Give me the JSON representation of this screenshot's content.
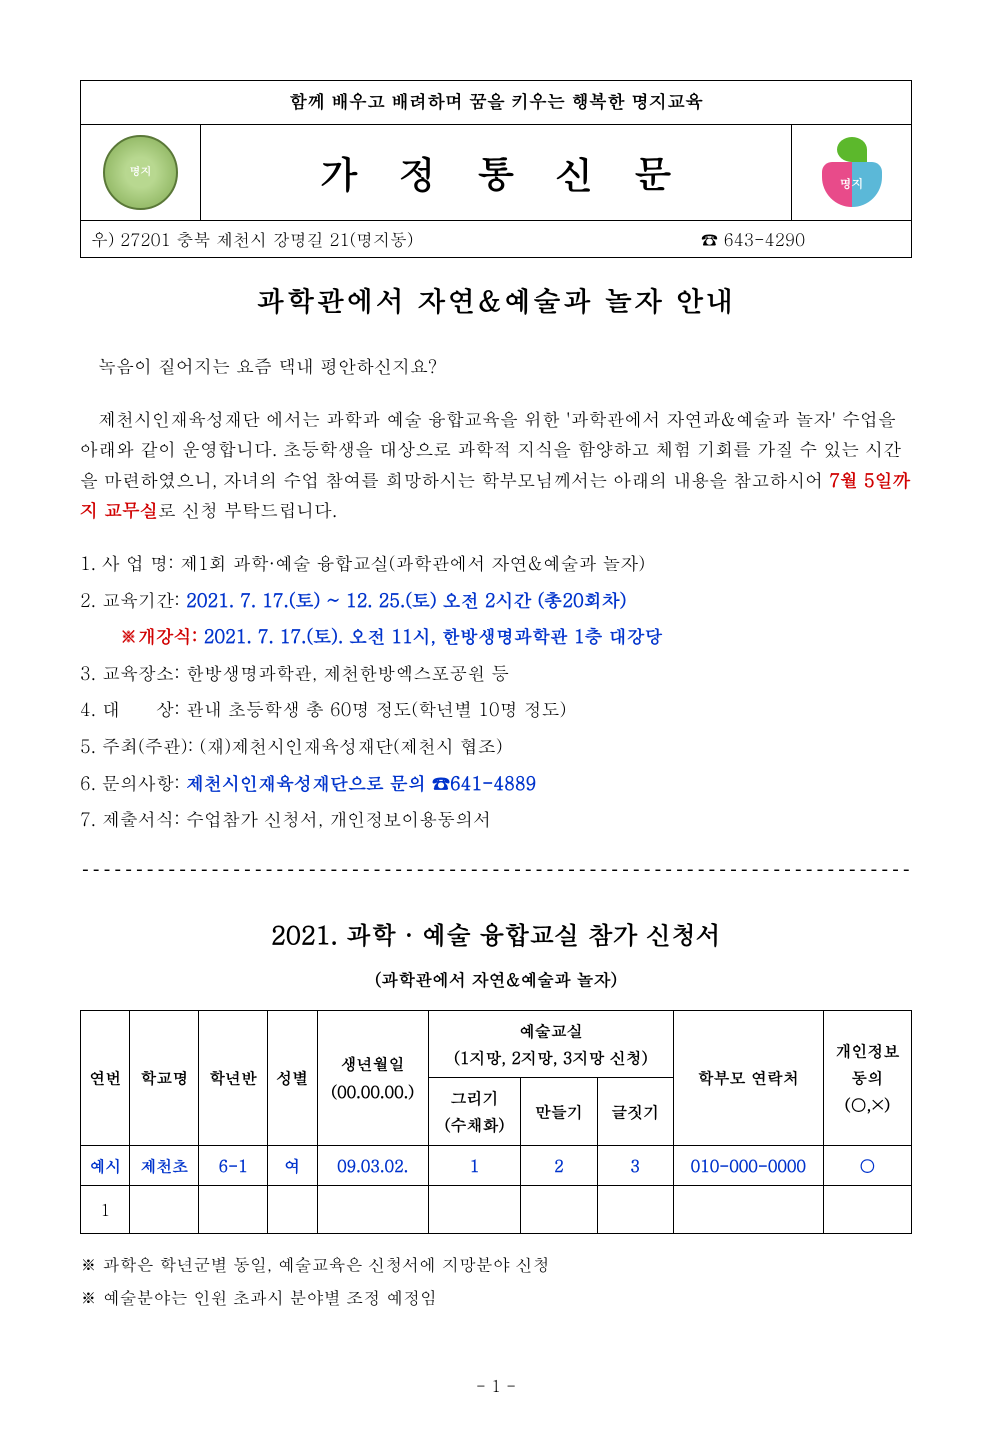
{
  "header": {
    "slogan": "함께 배우고 배려하며 꿈을 키우는 행복한 명지교육",
    "doc_title": "가 정 통 신 문",
    "logo_left_alt": "명지",
    "logo_right_alt": "명지",
    "address": "우) 27201 충북 제천시 강명길 21(명지동)",
    "phone_label": "☎ 643-4290"
  },
  "main_title": "과학관에서 자연&예술과 놀자 안내",
  "intro": {
    "line1": "녹음이 짙어지는 요즘 댁내 평안하신지요?",
    "line2a": "제천시인재육성재단 에서는 과학과 예술 융합교육을 위한 '과학관에서 자연과&예술과 놀자' 수업을 아래와 같이 운영합니다. 초등학생을 대상으로 과학적 지식을 함양하고 체험 기회를 가질 수 있는 시간을 마련하였으니, 자녀의 수업 참여를 희망하시는 학부모님께서는 아래의 내용을 참고하시어 ",
    "deadline": "7월 5일까지 교무실",
    "line2b": "로 신청 부탁드립니다."
  },
  "items": {
    "i1_label": "1. 사 업 명:",
    "i1_val": " 제1회 과학·예술 융합교실(과학관에서 자연&예술과 놀자)",
    "i2_label": "2. 교육기간: ",
    "i2_val": "2021. 7. 17.(토) ~ 12. 25.(토) 오전 2시간 (총20회차)",
    "i2_note_label": "※개강식: ",
    "i2_note_val": "2021. 7. 17.(토). 오전 11시, 한방생명과학관 1층 대강당",
    "i3": "3. 교육장소: 한방생명과학관, 제천한방엑스포공원 등",
    "i4": "4. 대　　상: 관내 초등학생 총 60명 정도(학년별 10명 정도)",
    "i5": "5. 주최(주관): (재)제천시인재육성재단(제천시 협조)",
    "i6_label": "6. 문의사항: ",
    "i6_val": "제천시인재육성재단으로 문의 ☎641-4889",
    "i7": "7. 제출서식: 수업참가 신청서, 개인정보이용동의서"
  },
  "form": {
    "title": "2021. 과학 · 예술 융합교실 참가 신청서",
    "subtitle": "(과학관에서 자연&예술과 놀자)",
    "columns": {
      "c1": "연번",
      "c2": "학교명",
      "c3": "학년반",
      "c4": "성별",
      "c5a": "생년월일",
      "c5b": "(00.00.00.)",
      "c6_group_a": "예술교실",
      "c6_group_b": "(1지망, 2지망, 3지망 신청)",
      "c6a_1": "그리기",
      "c6a_2": "(수채화)",
      "c6b": "만들기",
      "c6c": "글짓기",
      "c7": "학부모 연락처",
      "c8a": "개인정보",
      "c8b": "동의",
      "c8c": "(○,×)"
    },
    "example": {
      "r1": "예시",
      "r2": "제천초",
      "r3": "6-1",
      "r4": "여",
      "r5": "09.03.02.",
      "r6a": "1",
      "r6b": "2",
      "r6c": "3",
      "r7": "010-000-0000",
      "r8": "○"
    },
    "blank_num": "1"
  },
  "notes": {
    "n1": "※ 과학은 학년군별 동일, 예술교육은 신청서에 지망분야 신청",
    "n2": "※ 예술분야는 인원 초과시 분야별 조정 예정임"
  },
  "page_num": "- 1 -",
  "divider": "-------------------------------------------------------------------------------"
}
